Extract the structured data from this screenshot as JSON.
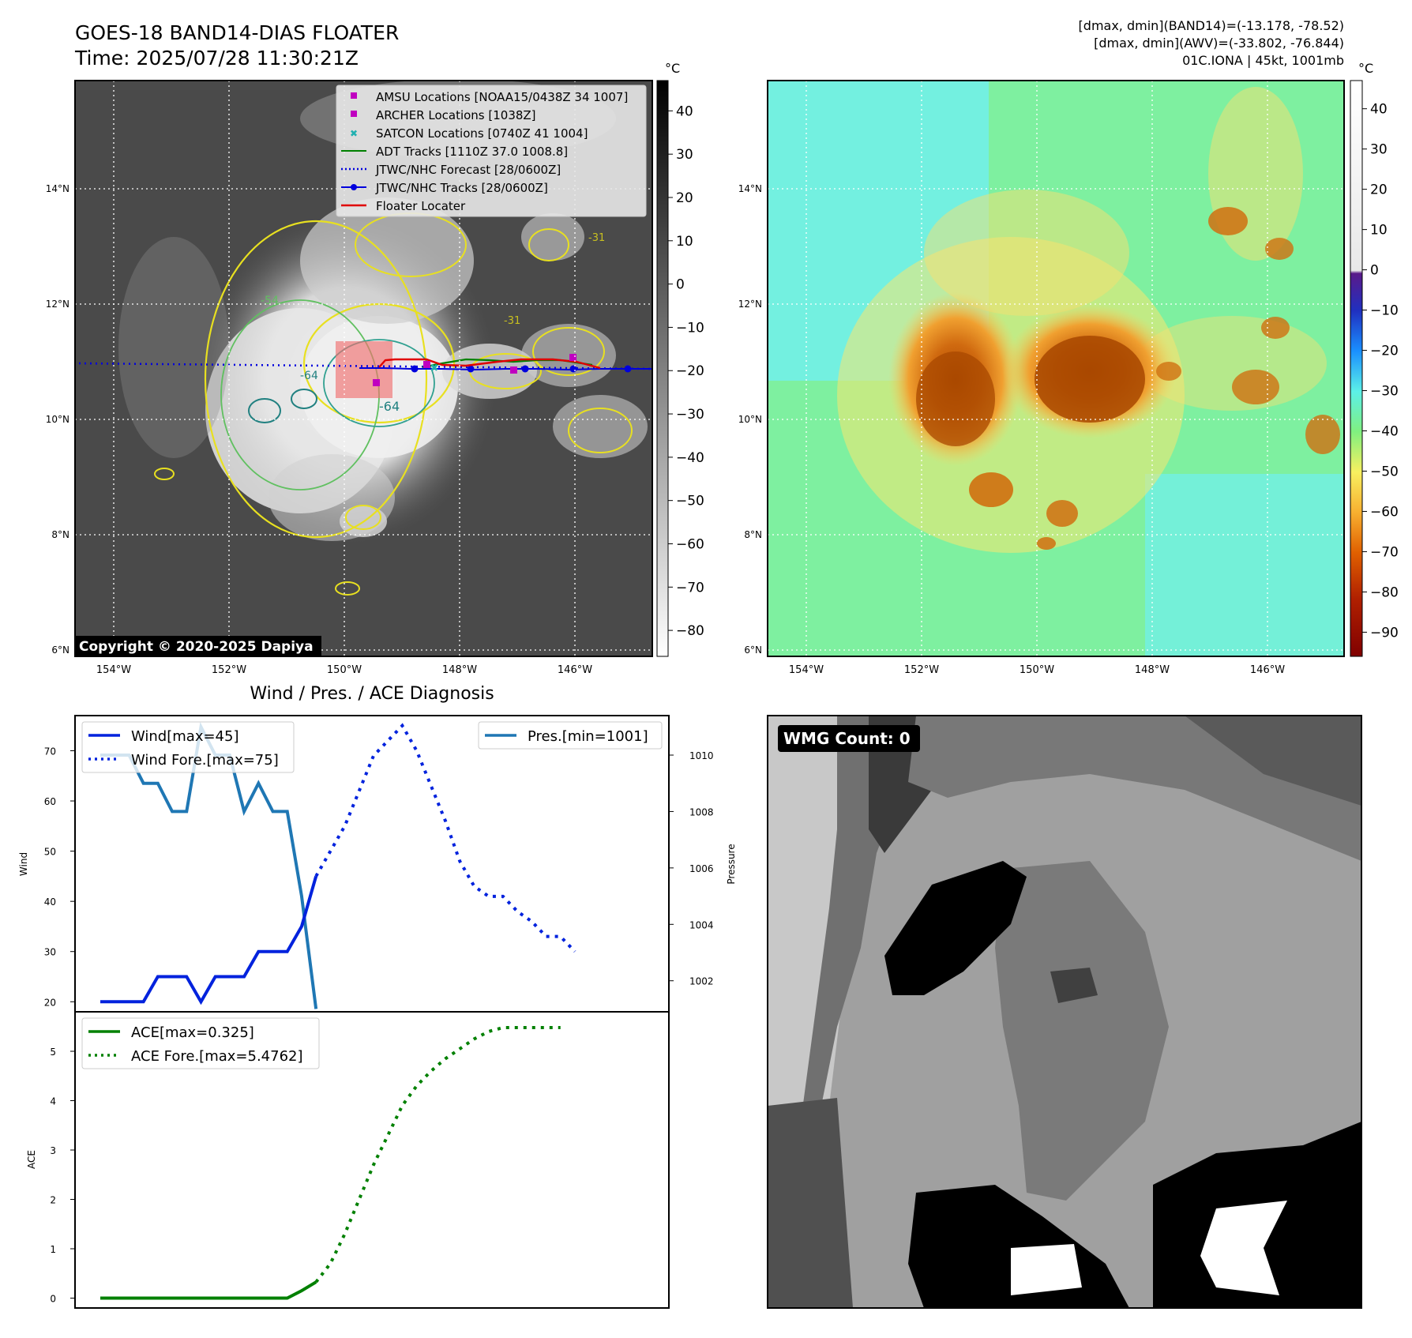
{
  "header": {
    "title_line1": "GOES-18 BAND14-DIAS FLOATER",
    "title_line2": "Time: 2025/07/28 11:30:21Z",
    "info_line1": "[dmax, dmin](BAND14)=(-13.178, -78.52)",
    "info_line2": "[dmax, dmin](AWV)=(-33.802, -76.844)",
    "info_line3": "01C.IONA | 45kt, 1001mb"
  },
  "map_axes": {
    "lat_labels": [
      "14°N",
      "12°N",
      "10°N",
      "8°N",
      "6°N"
    ],
    "lon_labels": [
      "154°W",
      "152°W",
      "150°W",
      "148°W",
      "146°W"
    ]
  },
  "gray_colorbar": {
    "unit": "°C",
    "ticks": [
      "40",
      "30",
      "20",
      "10",
      "0",
      "−10",
      "−20",
      "−30",
      "−40",
      "−50",
      "−60",
      "−70",
      "−80"
    ]
  },
  "color_colorbar": {
    "unit": "°C",
    "ticks": [
      "40",
      "30",
      "20",
      "10",
      "0",
      "−10",
      "−20",
      "−30",
      "−40",
      "−50",
      "−60",
      "−70",
      "−80",
      "−90"
    ]
  },
  "legend": {
    "items": [
      {
        "label": "AMSU Locations [NOAA15/0438Z 34 1007]",
        "color": "#c000c0",
        "marker": "square"
      },
      {
        "label": "ARCHER Locations [1038Z]",
        "color": "#c000c0",
        "marker": "square"
      },
      {
        "label": "SATCON Locations [0740Z 41 1004]",
        "color": "#20b0b0",
        "marker": "x"
      },
      {
        "label": "ADT Tracks [1110Z 37.0 1008.8]",
        "color": "#008000",
        "marker": "line"
      },
      {
        "label": "JTWC/NHC Forecast [28/0600Z]",
        "color": "#0000dd",
        "marker": "dotted"
      },
      {
        "label": "JTWC/NHC Tracks [28/0600Z]",
        "color": "#0000dd",
        "marker": "line-dot"
      },
      {
        "label": "Floater Locater",
        "color": "#e00000",
        "marker": "line"
      }
    ]
  },
  "contour_labels": [
    "-64",
    "-64",
    "-54",
    "-31",
    "-31"
  ],
  "copyright": "Copyright © 2020-2025 Dapiya",
  "wmg_badge": "WMG Count: 0",
  "chart_data": [
    {
      "type": "line",
      "title": "Wind / Pres. / ACE Diagnosis",
      "ylabel": "Wind",
      "ylabel_right": "Pressure",
      "ylim": [
        18,
        77
      ],
      "ylim_right": [
        1000.9,
        1011.4
      ],
      "yticks": [
        20,
        30,
        40,
        50,
        60,
        70
      ],
      "yticks_right": [
        1002,
        1004,
        1006,
        1008,
        1010
      ],
      "series": [
        {
          "name": "Wind[max=45]",
          "color": "#0022dd",
          "style": "solid",
          "axis": "left",
          "x": [
            0,
            1,
            2,
            3,
            4,
            5,
            6,
            7,
            8,
            9,
            10,
            11,
            12,
            13,
            14,
            15,
            16,
            17
          ],
          "y": [
            20,
            20,
            20,
            20,
            25,
            25,
            25,
            20,
            25,
            25,
            25,
            30,
            30,
            30,
            35,
            45,
            null,
            null
          ]
        },
        {
          "name": "Wind Fore.[max=75]",
          "color": "#0022dd",
          "style": "dotted",
          "axis": "left",
          "x": [
            15,
            16,
            17,
            18,
            19,
            20,
            21,
            22,
            23,
            24,
            25,
            26,
            27,
            28,
            29,
            30,
            31,
            32,
            33,
            34,
            35,
            36,
            37
          ],
          "y": [
            45,
            50,
            55,
            62,
            69,
            72,
            75,
            70,
            63,
            56,
            48,
            43,
            41,
            41,
            38,
            36,
            33,
            33,
            30,
            null,
            null,
            null,
            null
          ]
        },
        {
          "name": "Pres.[min=1001]",
          "color": "#1f77b4",
          "style": "solid",
          "axis": "right",
          "x": [
            0,
            1,
            2,
            3,
            4,
            5,
            6,
            7,
            8,
            9,
            10,
            11,
            12,
            13,
            14,
            15
          ],
          "y": [
            1010,
            1010,
            1010,
            1009,
            1009,
            1008,
            1008,
            1011,
            1010,
            1010,
            1008,
            1009,
            1008,
            1008,
            1005,
            1001
          ]
        }
      ]
    },
    {
      "type": "line",
      "ylabel": "ACE",
      "ylim": [
        -0.2,
        5.8
      ],
      "yticks": [
        0,
        1,
        2,
        3,
        4,
        5
      ],
      "series": [
        {
          "name": "ACE[max=0.325]",
          "color": "#008000",
          "style": "solid",
          "x": [
            0,
            1,
            2,
            3,
            4,
            5,
            6,
            7,
            8,
            9,
            10,
            11,
            12,
            13,
            14,
            15
          ],
          "y": [
            0,
            0,
            0,
            0,
            0,
            0,
            0,
            0,
            0,
            0,
            0,
            0,
            0,
            0,
            0.15,
            0.325
          ]
        },
        {
          "name": "ACE Fore.[max=5.4762]",
          "color": "#008000",
          "style": "dotted",
          "x": [
            15,
            16,
            17,
            18,
            19,
            20,
            21,
            22,
            23,
            24,
            25,
            26,
            27,
            28,
            29,
            30,
            31,
            32,
            33,
            34,
            35,
            36
          ],
          "y": [
            0.325,
            0.7,
            1.3,
            2.0,
            2.7,
            3.3,
            3.9,
            4.3,
            4.6,
            4.85,
            5.05,
            5.25,
            5.4,
            5.48,
            5.48,
            5.48,
            5.48,
            5.48,
            null,
            null,
            null,
            null
          ]
        }
      ]
    }
  ]
}
